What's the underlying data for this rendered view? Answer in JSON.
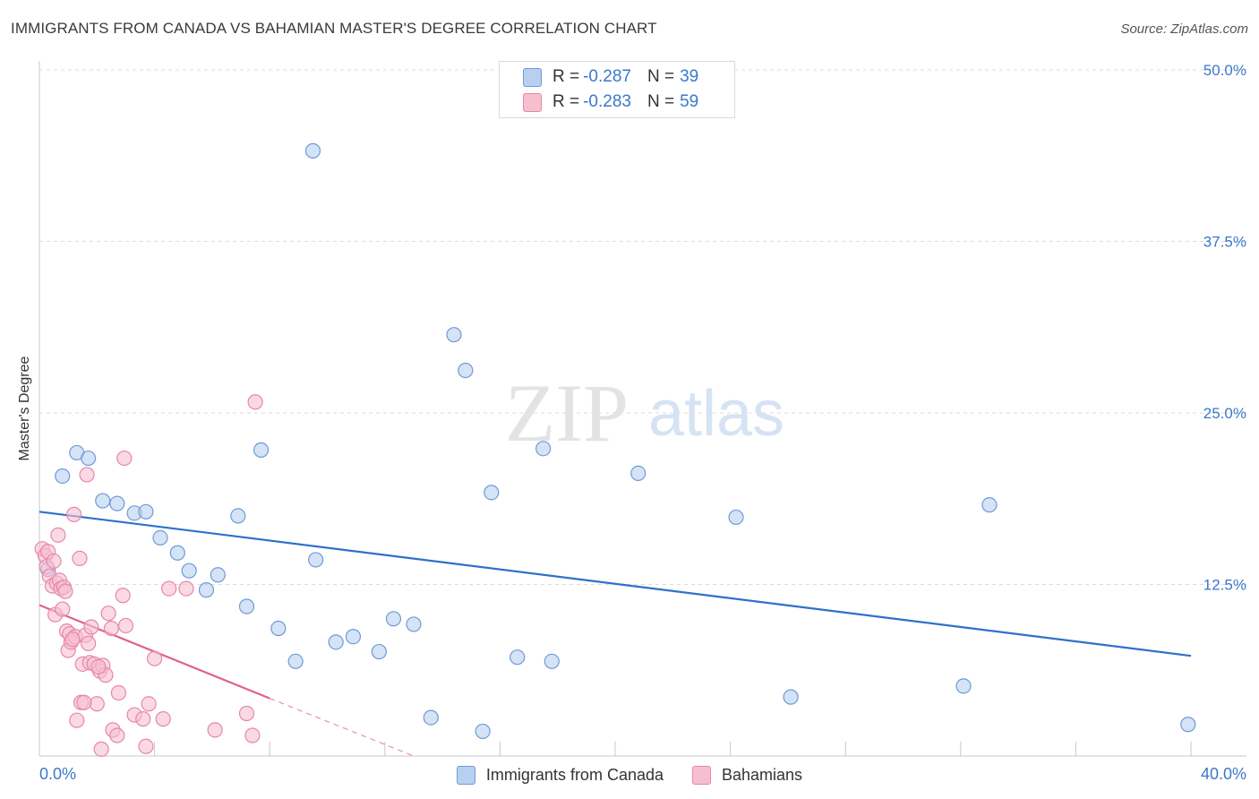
{
  "title": "IMMIGRANTS FROM CANADA VS BAHAMIAN MASTER'S DEGREE CORRELATION CHART",
  "source": "Source: ZipAtlas.com",
  "watermark": {
    "zip": "ZIP",
    "atlas": "atlas"
  },
  "legend": {
    "series1": {
      "r_label": "R =",
      "r_value": "-0.287",
      "n_label": "N =",
      "n_value": "39"
    },
    "series2": {
      "r_label": "R =",
      "r_value": "-0.283",
      "n_label": "N =",
      "n_value": "59"
    }
  },
  "colors": {
    "canada_fill": "#b8d0f0",
    "canada_stroke": "#6f9ad6",
    "canada_line": "#2f6fcb",
    "bahamas_fill": "#f6bfd0",
    "bahamas_stroke": "#e787a6",
    "bahamas_line": "#e0608d",
    "grid": "#dcdcdc",
    "tick_label": "#3a78c9"
  },
  "chart_data": {
    "type": "scatter",
    "title": "IMMIGRANTS FROM CANADA VS BAHAMIAN MASTER'S DEGREE CORRELATION CHART",
    "xlabel": "",
    "ylabel": "Master's Degree",
    "xlim": [
      0,
      40
    ],
    "ylim": [
      0,
      50
    ],
    "x_tick_labels": [
      "0.0%",
      "40.0%"
    ],
    "y_ticks": [
      12.5,
      25.0,
      37.5,
      50.0
    ],
    "y_tick_labels": [
      "12.5%",
      "25.0%",
      "37.5%",
      "50.0%"
    ],
    "grid": true,
    "series": [
      {
        "name": "Immigrants from Canada",
        "r": -0.287,
        "n": 39,
        "trend": {
          "x": [
            0,
            40
          ],
          "y": [
            17.8,
            7.3
          ]
        },
        "points": [
          [
            0.3,
            13.6
          ],
          [
            0.8,
            20.4
          ],
          [
            1.3,
            22.1
          ],
          [
            1.7,
            21.7
          ],
          [
            2.2,
            18.6
          ],
          [
            2.7,
            18.4
          ],
          [
            3.3,
            17.7
          ],
          [
            3.7,
            17.8
          ],
          [
            4.2,
            15.9
          ],
          [
            4.8,
            14.8
          ],
          [
            5.2,
            13.5
          ],
          [
            5.8,
            12.1
          ],
          [
            6.2,
            13.2
          ],
          [
            6.9,
            17.5
          ],
          [
            7.2,
            10.9
          ],
          [
            7.7,
            22.3
          ],
          [
            8.3,
            9.3
          ],
          [
            8.9,
            6.9
          ],
          [
            9.5,
            44.1
          ],
          [
            9.6,
            14.3
          ],
          [
            10.3,
            8.3
          ],
          [
            10.9,
            8.7
          ],
          [
            11.8,
            7.6
          ],
          [
            12.3,
            10.0
          ],
          [
            13.0,
            9.6
          ],
          [
            13.6,
            2.8
          ],
          [
            14.4,
            30.7
          ],
          [
            14.8,
            28.1
          ],
          [
            15.4,
            1.8
          ],
          [
            15.7,
            19.2
          ],
          [
            16.6,
            7.2
          ],
          [
            17.5,
            22.4
          ],
          [
            17.8,
            6.9
          ],
          [
            20.8,
            20.6
          ],
          [
            24.2,
            17.4
          ],
          [
            26.1,
            4.3
          ],
          [
            32.1,
            5.1
          ],
          [
            33.0,
            18.3
          ],
          [
            39.9,
            2.3
          ]
        ]
      },
      {
        "name": "Bahamians",
        "r": -0.283,
        "n": 59,
        "trend": {
          "x": [
            0,
            8
          ],
          "y": [
            11.0,
            4.2
          ]
        },
        "trend_dashed": {
          "x": [
            8,
            13.0
          ],
          "y": [
            4.2,
            0
          ]
        },
        "points": [
          [
            0.1,
            15.1
          ],
          [
            0.2,
            14.6
          ],
          [
            0.25,
            13.8
          ],
          [
            0.3,
            14.9
          ],
          [
            0.35,
            13.1
          ],
          [
            0.45,
            12.4
          ],
          [
            0.55,
            10.3
          ],
          [
            0.6,
            12.6
          ],
          [
            0.65,
            16.1
          ],
          [
            0.7,
            12.8
          ],
          [
            0.75,
            12.2
          ],
          [
            0.8,
            10.7
          ],
          [
            0.85,
            12.3
          ],
          [
            0.9,
            12.0
          ],
          [
            0.95,
            9.1
          ],
          [
            1.0,
            7.7
          ],
          [
            1.05,
            8.9
          ],
          [
            1.1,
            8.3
          ],
          [
            1.2,
            17.6
          ],
          [
            1.25,
            8.7
          ],
          [
            1.3,
            2.6
          ],
          [
            1.4,
            14.4
          ],
          [
            1.45,
            3.9
          ],
          [
            1.5,
            6.7
          ],
          [
            1.6,
            8.8
          ],
          [
            1.65,
            20.5
          ],
          [
            1.7,
            8.2
          ],
          [
            1.75,
            6.8
          ],
          [
            1.8,
            9.4
          ],
          [
            1.9,
            6.7
          ],
          [
            2.0,
            3.8
          ],
          [
            2.1,
            6.2
          ],
          [
            2.15,
            0.5
          ],
          [
            2.2,
            6.6
          ],
          [
            2.3,
            5.9
          ],
          [
            2.4,
            10.4
          ],
          [
            2.5,
            9.3
          ],
          [
            2.55,
            1.9
          ],
          [
            2.7,
            1.5
          ],
          [
            2.75,
            4.6
          ],
          [
            2.9,
            11.7
          ],
          [
            2.95,
            21.7
          ],
          [
            3.0,
            9.5
          ],
          [
            3.3,
            3.0
          ],
          [
            3.6,
            2.7
          ],
          [
            3.7,
            0.7
          ],
          [
            3.8,
            3.8
          ],
          [
            4.0,
            7.1
          ],
          [
            4.3,
            2.7
          ],
          [
            4.5,
            12.2
          ],
          [
            5.1,
            12.2
          ],
          [
            6.1,
            1.9
          ],
          [
            7.2,
            3.1
          ],
          [
            7.4,
            1.5
          ],
          [
            7.5,
            25.8
          ],
          [
            1.55,
            3.9
          ],
          [
            0.5,
            14.2
          ],
          [
            2.05,
            6.5
          ],
          [
            1.15,
            8.5
          ]
        ]
      }
    ]
  },
  "bottom_legend": [
    "Immigrants from Canada",
    "Bahamians"
  ]
}
